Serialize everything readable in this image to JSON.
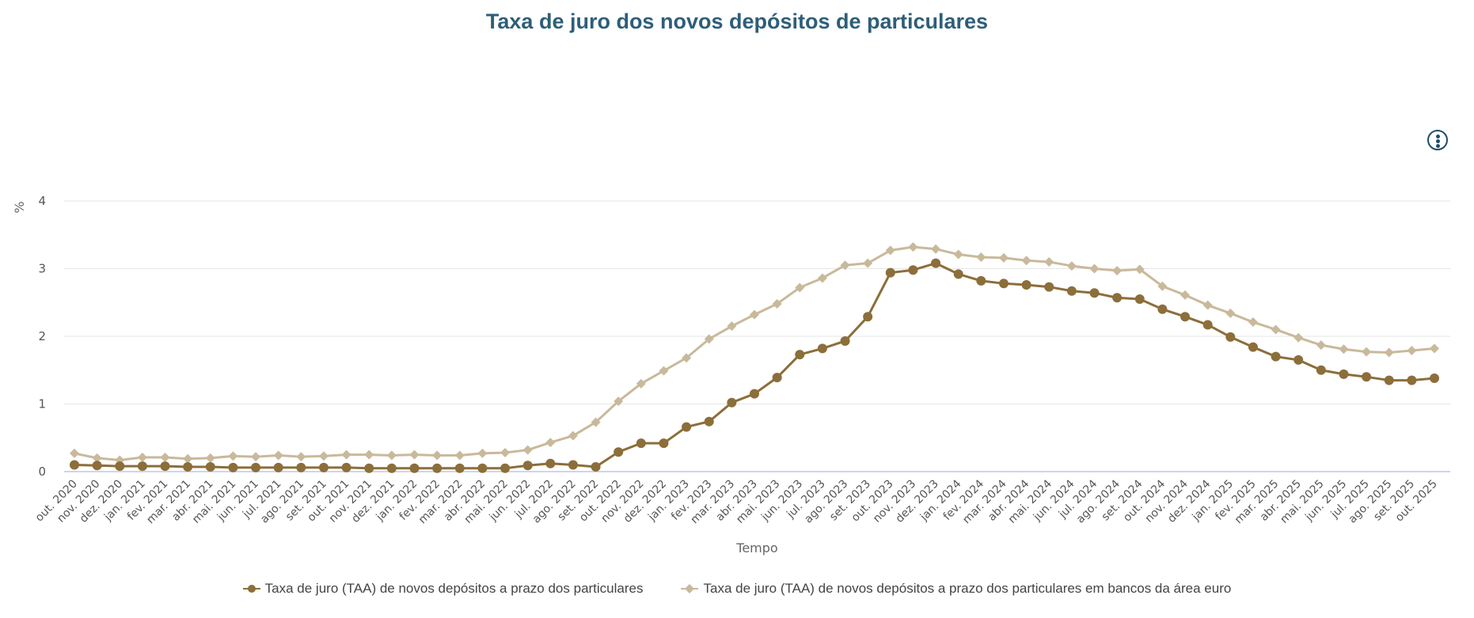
{
  "menu": {
    "icon": "more-vertical-icon"
  },
  "chart_data": {
    "type": "line",
    "title": "Taxa de juro dos novos depósitos de particulares",
    "xlabel": "Tempo",
    "ylabel": "%",
    "ylim": [
      0,
      4
    ],
    "yticks": [
      "0",
      "1",
      "2",
      "3",
      "4"
    ],
    "grid": true,
    "legend_position": "bottom",
    "categories": [
      "out. 2020",
      "nov. 2020",
      "dez. 2020",
      "jan. 2021",
      "fev. 2021",
      "mar. 2021",
      "abr. 2021",
      "mai. 2021",
      "jun. 2021",
      "jul. 2021",
      "ago. 2021",
      "set. 2021",
      "out. 2021",
      "nov. 2021",
      "dez. 2021",
      "jan. 2022",
      "fev. 2022",
      "mar. 2022",
      "abr. 2022",
      "mai. 2022",
      "jun. 2022",
      "jul. 2022",
      "ago. 2022",
      "set. 2022",
      "out. 2022",
      "nov. 2022",
      "dez. 2022",
      "jan. 2023",
      "fev. 2023",
      "mar. 2023",
      "abr. 2023",
      "mai. 2023",
      "jun. 2023",
      "jul. 2023",
      "ago. 2023",
      "set. 2023",
      "out. 2023",
      "nov. 2023",
      "dez. 2023",
      "jan. 2024",
      "fev. 2024",
      "mar. 2024",
      "abr. 2024",
      "mai. 2024",
      "jun. 2024",
      "jul. 2024",
      "ago. 2024",
      "set. 2024",
      "out. 2024",
      "nov. 2024",
      "dez. 2024",
      "jan. 2025",
      "fev. 2025",
      "mar. 2025",
      "abr. 2025",
      "mai. 2025",
      "jun. 2025",
      "jul. 2025",
      "ago. 2025",
      "set. 2025",
      "out. 2025"
    ],
    "series": [
      {
        "name": "Taxa de juro (TAA) de novos depósitos a prazo dos particulares",
        "color": "#8c6e3a",
        "marker": "circle",
        "values": [
          0.1,
          0.09,
          0.08,
          0.08,
          0.08,
          0.07,
          0.07,
          0.06,
          0.06,
          0.06,
          0.06,
          0.06,
          0.06,
          0.05,
          0.05,
          0.05,
          0.05,
          0.05,
          0.05,
          0.05,
          0.09,
          0.12,
          0.1,
          0.07,
          0.29,
          0.42,
          0.42,
          0.66,
          0.74,
          1.02,
          1.15,
          1.39,
          1.73,
          1.82,
          1.93,
          2.29,
          2.94,
          2.98,
          3.08,
          2.92,
          2.82,
          2.78,
          2.76,
          2.73,
          2.67,
          2.64,
          2.57,
          2.55,
          2.4,
          2.29,
          2.17,
          1.99,
          1.84,
          1.7,
          1.65,
          1.5,
          1.44,
          1.4,
          1.35,
          1.35,
          1.38
        ]
      },
      {
        "name": "Taxa de juro (TAA) de novos depósitos a prazo dos particulares em bancos da área euro",
        "color": "#c9b99b",
        "marker": "diamond",
        "values": [
          0.27,
          0.2,
          0.17,
          0.21,
          0.21,
          0.19,
          0.2,
          0.23,
          0.22,
          0.24,
          0.22,
          0.23,
          0.25,
          0.25,
          0.24,
          0.25,
          0.24,
          0.24,
          0.27,
          0.28,
          0.32,
          0.43,
          0.53,
          0.73,
          1.04,
          1.3,
          1.49,
          1.68,
          1.96,
          2.15,
          2.32,
          2.48,
          2.72,
          2.86,
          3.05,
          3.08,
          3.27,
          3.32,
          3.29,
          3.21,
          3.17,
          3.16,
          3.12,
          3.1,
          3.04,
          3.0,
          2.97,
          2.99,
          2.74,
          2.61,
          2.46,
          2.34,
          2.21,
          2.1,
          1.98,
          1.87,
          1.81,
          1.77,
          1.76,
          1.79,
          1.82
        ]
      }
    ]
  }
}
